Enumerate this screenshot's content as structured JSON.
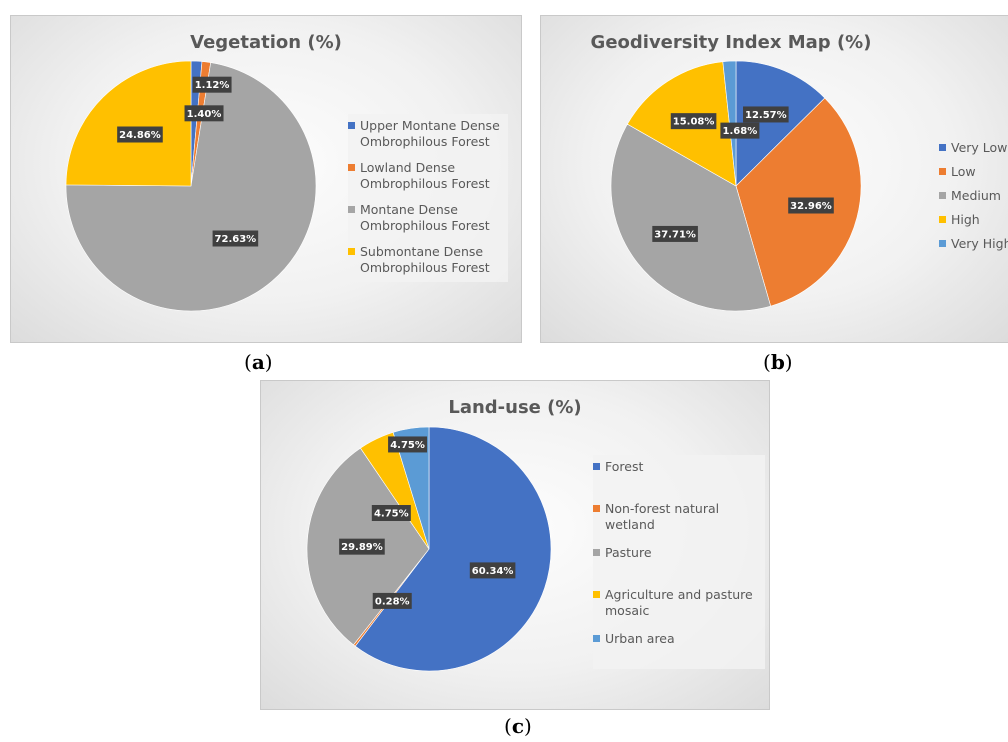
{
  "captions": {
    "a": "(a)",
    "a_letter": "a",
    "b_letter": "b",
    "c_letter": "c"
  },
  "charts": {
    "vegetation": {
      "title": "Vegetation (%)",
      "legend": [
        {
          "label": "Upper Montane Dense Ombrophilous Forest",
          "color": "#4472C4"
        },
        {
          "label": "Lowland Dense Ombrophilous Forest",
          "color": "#ED7D31"
        },
        {
          "label": "Montane Dense Ombrophilous Forest",
          "color": "#A5A5A5"
        },
        {
          "label": "Submontane Dense Ombrophilous Forest",
          "color": "#FFC000"
        }
      ]
    },
    "geodiversity": {
      "title": "Geodiversity Index Map (%)",
      "legend": [
        {
          "label": "Very Low",
          "color": "#4472C4"
        },
        {
          "label": "Low",
          "color": "#ED7D31"
        },
        {
          "label": "Medium",
          "color": "#A5A5A5"
        },
        {
          "label": "High",
          "color": "#FFC000"
        },
        {
          "label": "Very High",
          "color": "#5B9BD5"
        }
      ]
    },
    "landuse": {
      "title": "Land-use (%)",
      "legend": [
        {
          "label": "Forest",
          "color": "#4472C4"
        },
        {
          "label": "Non-forest natural wetland",
          "color": "#ED7D31"
        },
        {
          "label": "Pasture",
          "color": "#A5A5A5"
        },
        {
          "label": "Agriculture and pasture mosaic",
          "color": "#FFC000"
        },
        {
          "label": "Urban area",
          "color": "#5B9BD5"
        }
      ]
    }
  },
  "chart_data": [
    {
      "type": "pie",
      "title": "Vegetation (%)",
      "categories": [
        "Upper Montane Dense Ombrophilous Forest",
        "Lowland Dense Ombrophilous Forest",
        "Montane Dense Ombrophilous Forest",
        "Submontane Dense Ombrophilous Forest"
      ],
      "values": [
        1.4,
        1.12,
        72.63,
        24.86
      ],
      "labels": [
        "1.40%",
        "1.12%",
        "72.63%",
        "24.86%"
      ],
      "colors": [
        "#4472C4",
        "#ED7D31",
        "#A5A5A5",
        "#FFC000"
      ],
      "legend_position": "right"
    },
    {
      "type": "pie",
      "title": "Geodiversity Index Map (%)",
      "categories": [
        "Very Low",
        "Low",
        "Medium",
        "High",
        "Very High"
      ],
      "values": [
        12.57,
        32.96,
        37.71,
        15.08,
        1.68
      ],
      "labels": [
        "12.57%",
        "32.96%",
        "37.71%",
        "15.08%",
        "1.68%"
      ],
      "colors": [
        "#4472C4",
        "#ED7D31",
        "#A5A5A5",
        "#FFC000",
        "#5B9BD5"
      ],
      "legend_position": "right"
    },
    {
      "type": "pie",
      "title": "Land-use (%)",
      "categories": [
        "Forest",
        "Non-forest natural wetland",
        "Pasture",
        "Agriculture and pasture mosaic",
        "Urban area"
      ],
      "values": [
        60.34,
        0.28,
        29.89,
        4.75,
        4.75
      ],
      "labels": [
        "60.34%",
        "0.28%",
        "29.89%",
        "4.75%",
        "4.75%"
      ],
      "colors": [
        "#4472C4",
        "#ED7D31",
        "#A5A5A5",
        "#FFC000",
        "#5B9BD5"
      ],
      "legend_position": "right"
    }
  ]
}
